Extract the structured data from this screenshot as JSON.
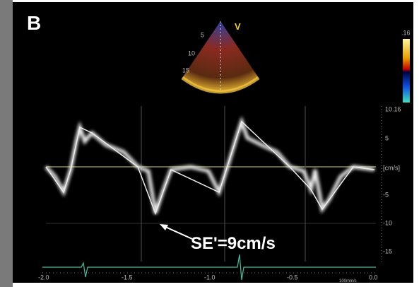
{
  "panel_label": "B",
  "sector": {
    "label": "V",
    "depths": [
      "5",
      "10",
      "15"
    ]
  },
  "color_bar": {
    "top": ".16"
  },
  "velocity_scale": {
    "labels": [
      "10.16",
      "5",
      "[cm/s]",
      "-5",
      "-10",
      "-15"
    ]
  },
  "time_axis": {
    "labels": [
      "-2.0",
      "-1.5",
      "-1.0",
      "-0.5",
      "0.0"
    ],
    "speed": "100mm/s"
  },
  "annotation": "SE'=9cm/s"
}
